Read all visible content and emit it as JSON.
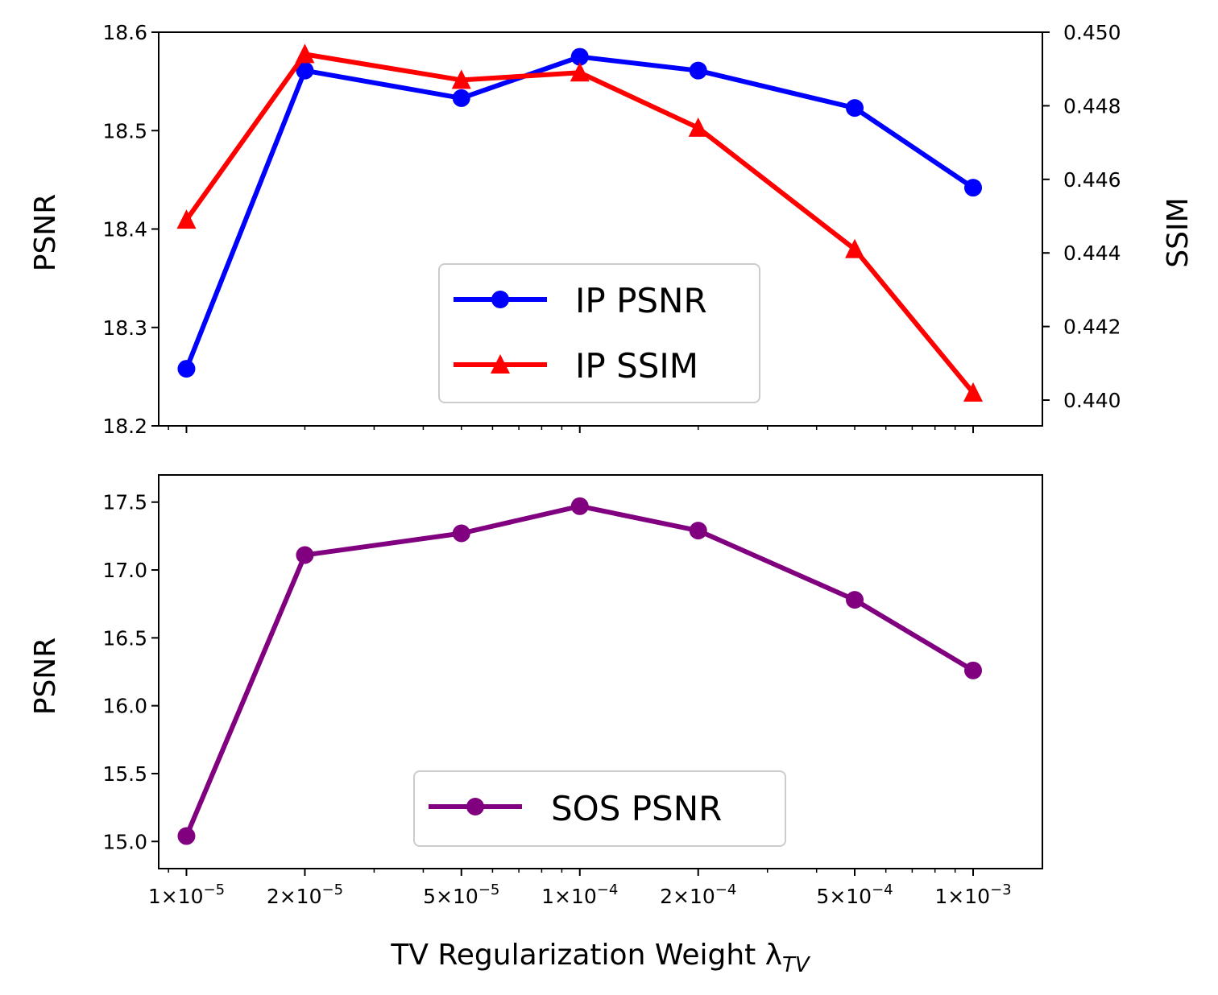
{
  "chart_data": [
    {
      "type": "line",
      "x": [
        1e-05,
        2e-05,
        5e-05,
        0.0001,
        0.0002,
        0.0005,
        0.001
      ],
      "xscale": "log",
      "xlim": [
        8.5e-06,
        0.0015
      ],
      "ylabel": "PSNR",
      "ylim": [
        18.2,
        18.6
      ],
      "yticks": [
        "18.2",
        "18.3",
        "18.4",
        "18.5",
        "18.6"
      ],
      "y2label": "SSIM",
      "y2lim": [
        0.4393,
        0.45
      ],
      "y2ticks": [
        "0.440",
        "0.442",
        "0.444",
        "0.446",
        "0.448",
        "0.450"
      ],
      "legend_position": "lower-center",
      "grid": false,
      "series": [
        {
          "name": "IP PSNR",
          "axis": "left",
          "marker": "circle",
          "color": "#0000ff",
          "values": [
            18.258,
            18.561,
            18.533,
            18.575,
            18.561,
            18.523,
            18.442
          ]
        },
        {
          "name": "IP SSIM",
          "axis": "right",
          "marker": "triangle",
          "color": "#ff0000",
          "values": [
            0.4449,
            0.4494,
            0.4487,
            0.4489,
            0.4474,
            0.4441,
            0.4402
          ]
        }
      ]
    },
    {
      "type": "line",
      "x": [
        1e-05,
        2e-05,
        5e-05,
        0.0001,
        0.0002,
        0.0005,
        0.001
      ],
      "xscale": "log",
      "xlim": [
        8.5e-06,
        0.0015
      ],
      "xlabel": "TV Regularization Weight λ",
      "xlabel_subscript": "TV",
      "xticks": [
        {
          "value": 1e-05,
          "mantissa": "1",
          "exponent": "−5"
        },
        {
          "value": 2e-05,
          "mantissa": "2",
          "exponent": "−5"
        },
        {
          "value": 5e-05,
          "mantissa": "5",
          "exponent": "−5"
        },
        {
          "value": 0.0001,
          "mantissa": "1",
          "exponent": "−4"
        },
        {
          "value": 0.0002,
          "mantissa": "2",
          "exponent": "−4"
        },
        {
          "value": 0.0005,
          "mantissa": "5",
          "exponent": "−4"
        },
        {
          "value": 0.001,
          "mantissa": "1",
          "exponent": "−3"
        }
      ],
      "ylabel": "PSNR",
      "ylim": [
        14.8,
        17.7
      ],
      "yticks": [
        "15.0",
        "15.5",
        "16.0",
        "16.5",
        "17.0",
        "17.5"
      ],
      "legend_position": "lower-center",
      "grid": false,
      "series": [
        {
          "name": "SOS PSNR",
          "axis": "left",
          "marker": "circle",
          "color": "#800080",
          "values": [
            15.04,
            17.11,
            17.27,
            17.47,
            17.29,
            16.78,
            16.26
          ]
        }
      ]
    }
  ]
}
